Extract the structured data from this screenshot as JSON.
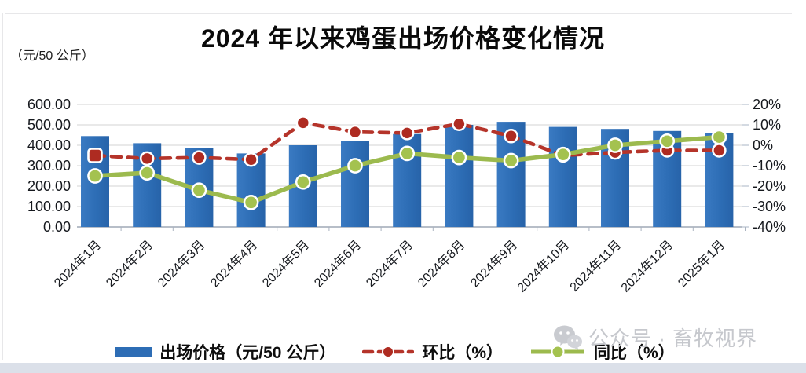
{
  "watermark": {
    "icon": "wechat-icon",
    "text": "公众号 · 畜牧视界"
  },
  "chart_data": {
    "type": "bar",
    "subtype": "combo-bar-line",
    "title": "2024 年以来鸡蛋出场价格变化情况",
    "unit_label": "（元/50 公斤）",
    "categories": [
      "2024年1月",
      "2024年2月",
      "2024年3月",
      "2024年4月",
      "2024年5月",
      "2024年6月",
      "2024年7月",
      "2024年8月",
      "2024年9月",
      "2024年10月",
      "2024年11月",
      "2024年12月",
      "2025年1月"
    ],
    "series": [
      {
        "name": "出场价格（元/50 公斤）",
        "type": "bar",
        "axis": "left",
        "color": "#2D6DB5",
        "values": [
          445,
          410,
          385,
          360,
          400,
          420,
          455,
          500,
          515,
          490,
          480,
          470,
          460
        ]
      },
      {
        "name": "环比（%）",
        "type": "line-dashed",
        "axis": "right",
        "color": "#B5342A",
        "marker_fill": "#AE2B21",
        "values": [
          -5,
          -6.5,
          -6,
          -7,
          11,
          6.5,
          6,
          10.5,
          4.5,
          -5,
          -3.5,
          -2.5,
          -2.5
        ]
      },
      {
        "name": "同比（%）",
        "type": "line",
        "axis": "right",
        "color": "#9CBA4E",
        "marker_fill": "#A4C24F",
        "values": [
          -15,
          -13.5,
          -22,
          -28,
          -18,
          -10,
          -4,
          -6,
          -7.5,
          -4.5,
          0,
          2,
          4
        ]
      }
    ],
    "left_axis": {
      "ticks": [
        "600.00",
        "500.00",
        "400.00",
        "300.00",
        "200.00",
        "100.00",
        "0.00"
      ],
      "min": 0,
      "max": 600
    },
    "right_axis": {
      "ticks": [
        "20%",
        "10%",
        "0%",
        "-10%",
        "-20%",
        "-30%",
        "-40%"
      ],
      "min": -40,
      "max": 20
    },
    "grid": true,
    "legend_position": "bottom"
  }
}
